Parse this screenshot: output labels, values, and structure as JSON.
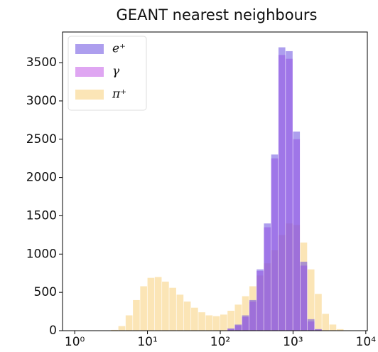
{
  "chart_data": {
    "type": "histogram",
    "title": "GEANT nearest neighbours",
    "xscale": "log",
    "bins": [
      3.162,
      3.981,
      5.012,
      6.31,
      7.943,
      10,
      12.59,
      15.85,
      19.95,
      25.12,
      31.62,
      39.81,
      50.12,
      63.1,
      79.43,
      100,
      125.9,
      158.5,
      199.5,
      251.2,
      316.2,
      398.1,
      501.2,
      631,
      794.3,
      1000,
      1259,
      1585,
      1995,
      2512,
      3162,
      3981,
      5012,
      6310
    ],
    "series": [
      {
        "name": "e⁺",
        "color": "#6a4fe0",
        "values": [
          0,
          0,
          0,
          0,
          0,
          0,
          0,
          0,
          0,
          0,
          0,
          0,
          0,
          0,
          0,
          0,
          30,
          80,
          200,
          400,
          800,
          1400,
          2300,
          3700,
          3650,
          2600,
          900,
          150,
          20,
          0,
          0,
          0,
          0
        ]
      },
      {
        "name": "γ",
        "color": "#c45ce8",
        "values": [
          0,
          0,
          0,
          0,
          0,
          0,
          0,
          0,
          0,
          0,
          0,
          0,
          0,
          0,
          0,
          0,
          20,
          70,
          180,
          380,
          780,
          1350,
          2250,
          3600,
          3550,
          2500,
          850,
          120,
          15,
          0,
          0,
          0,
          0
        ]
      },
      {
        "name": "π⁺",
        "color": "#f7cf7a",
        "values": [
          10,
          60,
          200,
          400,
          580,
          690,
          700,
          640,
          560,
          470,
          380,
          300,
          240,
          200,
          190,
          210,
          260,
          340,
          450,
          580,
          720,
          880,
          1050,
          1250,
          1400,
          1380,
          1150,
          800,
          480,
          220,
          80,
          20,
          5
        ]
      }
    ],
    "xlim": [
      0.68,
      10500
    ],
    "ylim": [
      0,
      3900
    ],
    "xticks": [
      {
        "value": 1,
        "label": "10⁰"
      },
      {
        "value": 10,
        "label": "10¹"
      },
      {
        "value": 100,
        "label": "10²"
      },
      {
        "value": 1000,
        "label": "10³"
      },
      {
        "value": 10000,
        "label": "10⁴"
      }
    ],
    "yticks": [
      0,
      500,
      1000,
      1500,
      2000,
      2500,
      3000,
      3500
    ],
    "legend": "upper left"
  }
}
